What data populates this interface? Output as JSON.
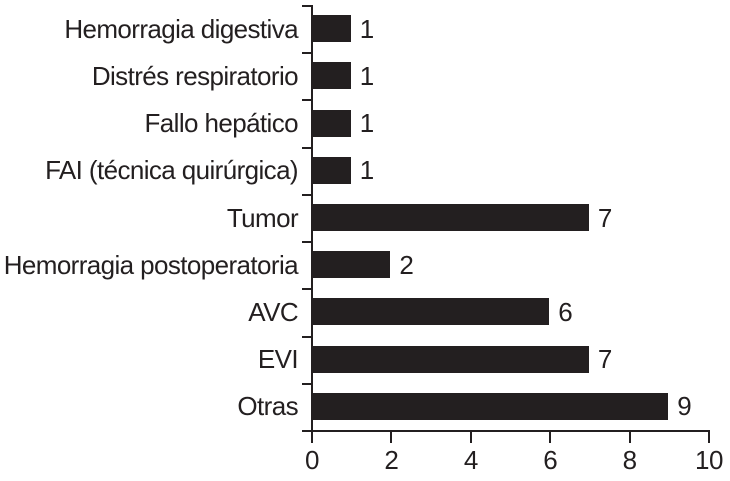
{
  "chart_data": {
    "type": "bar",
    "orientation": "horizontal",
    "title": "",
    "xlabel": "",
    "ylabel": "",
    "categories": [
      "Hemorragia digestiva",
      "Distrés respiratorio",
      "Fallo hepático",
      "FAI (técnica quirúrgica)",
      "Tumor",
      "Hemorragia postoperatoria",
      "AVC",
      "EVI",
      "Otras"
    ],
    "values": [
      1,
      1,
      1,
      1,
      7,
      2,
      6,
      7,
      9
    ],
    "data_labels": [
      "1",
      "1",
      "1",
      "1",
      "7",
      "2",
      "6",
      "7",
      "9"
    ],
    "xlim": [
      0,
      10
    ],
    "x_ticks": [
      "0",
      "2",
      "4",
      "6",
      "8",
      "10"
    ],
    "x_tick_values": [
      0,
      2,
      4,
      6,
      8,
      10
    ],
    "grid": false,
    "legend": false,
    "bar_color": "#231f20",
    "axis_color": "#231f20",
    "text_color": "#231f20",
    "background": "#ffffff"
  }
}
